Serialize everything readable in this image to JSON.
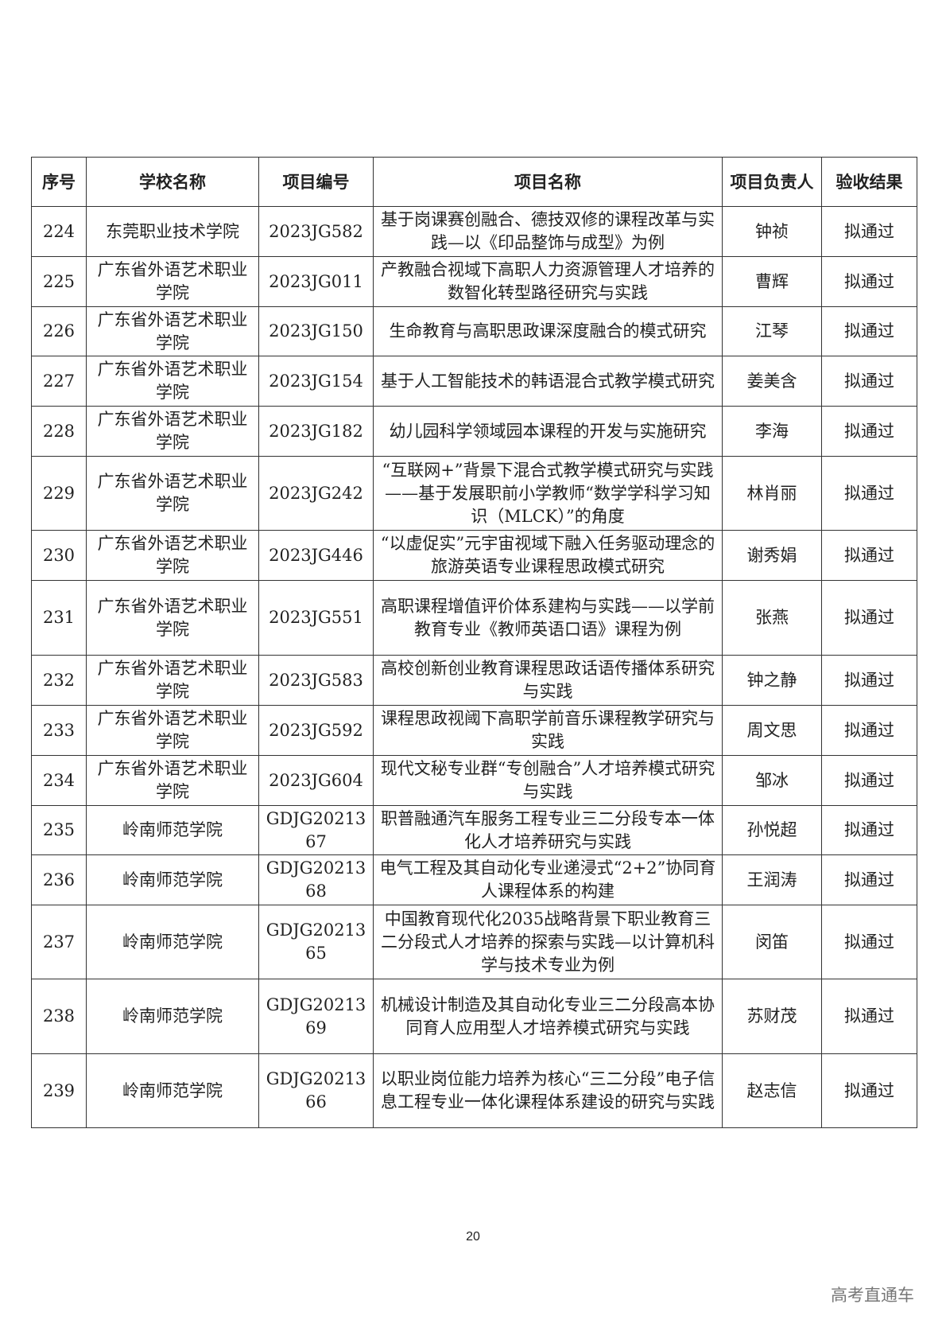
{
  "headers": [
    "序号",
    "学校名称",
    "项目编号",
    "项目名称",
    "项目负责人",
    "验收结果"
  ],
  "rows": [
    {
      "no": "224",
      "school": "东莞职业技术学院",
      "code": "2023JG582",
      "name": "基于岗课赛创融合、德技双修的课程改革与实践—以《印品整饰与成型》为例",
      "leader": "钟祯",
      "result": "拟通过"
    },
    {
      "no": "225",
      "school": "广东省外语艺术职业学院",
      "code": "2023JG011",
      "name": "产教融合视域下高职人力资源管理人才培养的数智化转型路径研究与实践",
      "leader": "曹辉",
      "result": "拟通过"
    },
    {
      "no": "226",
      "school": "广东省外语艺术职业学院",
      "code": "2023JG150",
      "name": "生命教育与高职思政课深度融合的模式研究",
      "leader": "江琴",
      "result": "拟通过"
    },
    {
      "no": "227",
      "school": "广东省外语艺术职业学院",
      "code": "2023JG154",
      "name": "基于人工智能技术的韩语混合式教学模式研究",
      "leader": "姜美含",
      "result": "拟通过"
    },
    {
      "no": "228",
      "school": "广东省外语艺术职业学院",
      "code": "2023JG182",
      "name": "幼儿园科学领域园本课程的开发与实施研究",
      "leader": "李海",
      "result": "拟通过"
    },
    {
      "no": "229",
      "school": "广东省外语艺术职业学院",
      "code": "2023JG242",
      "name": "“互联网+”背景下混合式教学模式研究与实践——基于发展职前小学教师“数学学科学习知识（MLCK）”的角度",
      "leader": "林肖丽",
      "result": "拟通过"
    },
    {
      "no": "230",
      "school": "广东省外语艺术职业学院",
      "code": "2023JG446",
      "name": "“以虚促实”元宇宙视域下融入任务驱动理念的旅游英语专业课程思政模式研究",
      "leader": "谢秀娟",
      "result": "拟通过"
    },
    {
      "no": "231",
      "school": "广东省外语艺术职业学院",
      "code": "2023JG551",
      "name": "高职课程增值评价体系建构与实践——以学前教育专业《教师英语口语》课程为例",
      "leader": "张燕",
      "result": "拟通过"
    },
    {
      "no": "232",
      "school": "广东省外语艺术职业学院",
      "code": "2023JG583",
      "name": "高校创新创业教育课程思政话语传播体系研究与实践",
      "leader": "钟之静",
      "result": "拟通过"
    },
    {
      "no": "233",
      "school": "广东省外语艺术职业学院",
      "code": "2023JG592",
      "name": "课程思政视阈下高职学前音乐课程教学研究与实践",
      "leader": "周文思",
      "result": "拟通过"
    },
    {
      "no": "234",
      "school": "广东省外语艺术职业学院",
      "code": "2023JG604",
      "name": "现代文秘专业群“专创融合”人才培养模式研究与实践",
      "leader": "邹冰",
      "result": "拟通过"
    },
    {
      "no": "235",
      "school": "岭南师范学院",
      "code": "GDJG2021367",
      "name": "职普融通汽车服务工程专业三二分段专本一体化人才培养研究与实践",
      "leader": "孙悦超",
      "result": "拟通过"
    },
    {
      "no": "236",
      "school": "岭南师范学院",
      "code": "GDJG2021368",
      "name": "电气工程及其自动化专业递浸式“2+2”协同育人课程体系的构建",
      "leader": "王润涛",
      "result": "拟通过"
    },
    {
      "no": "237",
      "school": "岭南师范学院",
      "code": "GDJG2021365",
      "name": "中国教育现代化2035战略背景下职业教育三二分段式人才培养的探索与实践—以计算机科学与技术专业为例",
      "leader": "闵笛",
      "result": "拟通过"
    },
    {
      "no": "238",
      "school": "岭南师范学院",
      "code": "GDJG2021369",
      "name": "机械设计制造及其自动化专业三二分段高本协同育人应用型人才培养模式研究与实践",
      "leader": "苏财茂",
      "result": "拟通过"
    },
    {
      "no": "239",
      "school": "岭南师范学院",
      "code": "GDJG2021366",
      "name": "以职业岗位能力培养为核心“三二分段”电子信息工程专业一体化课程体系建设的研究与实践",
      "leader": "赵志信",
      "result": "拟通过"
    }
  ],
  "page_number": "20",
  "watermark": "高考直通车"
}
